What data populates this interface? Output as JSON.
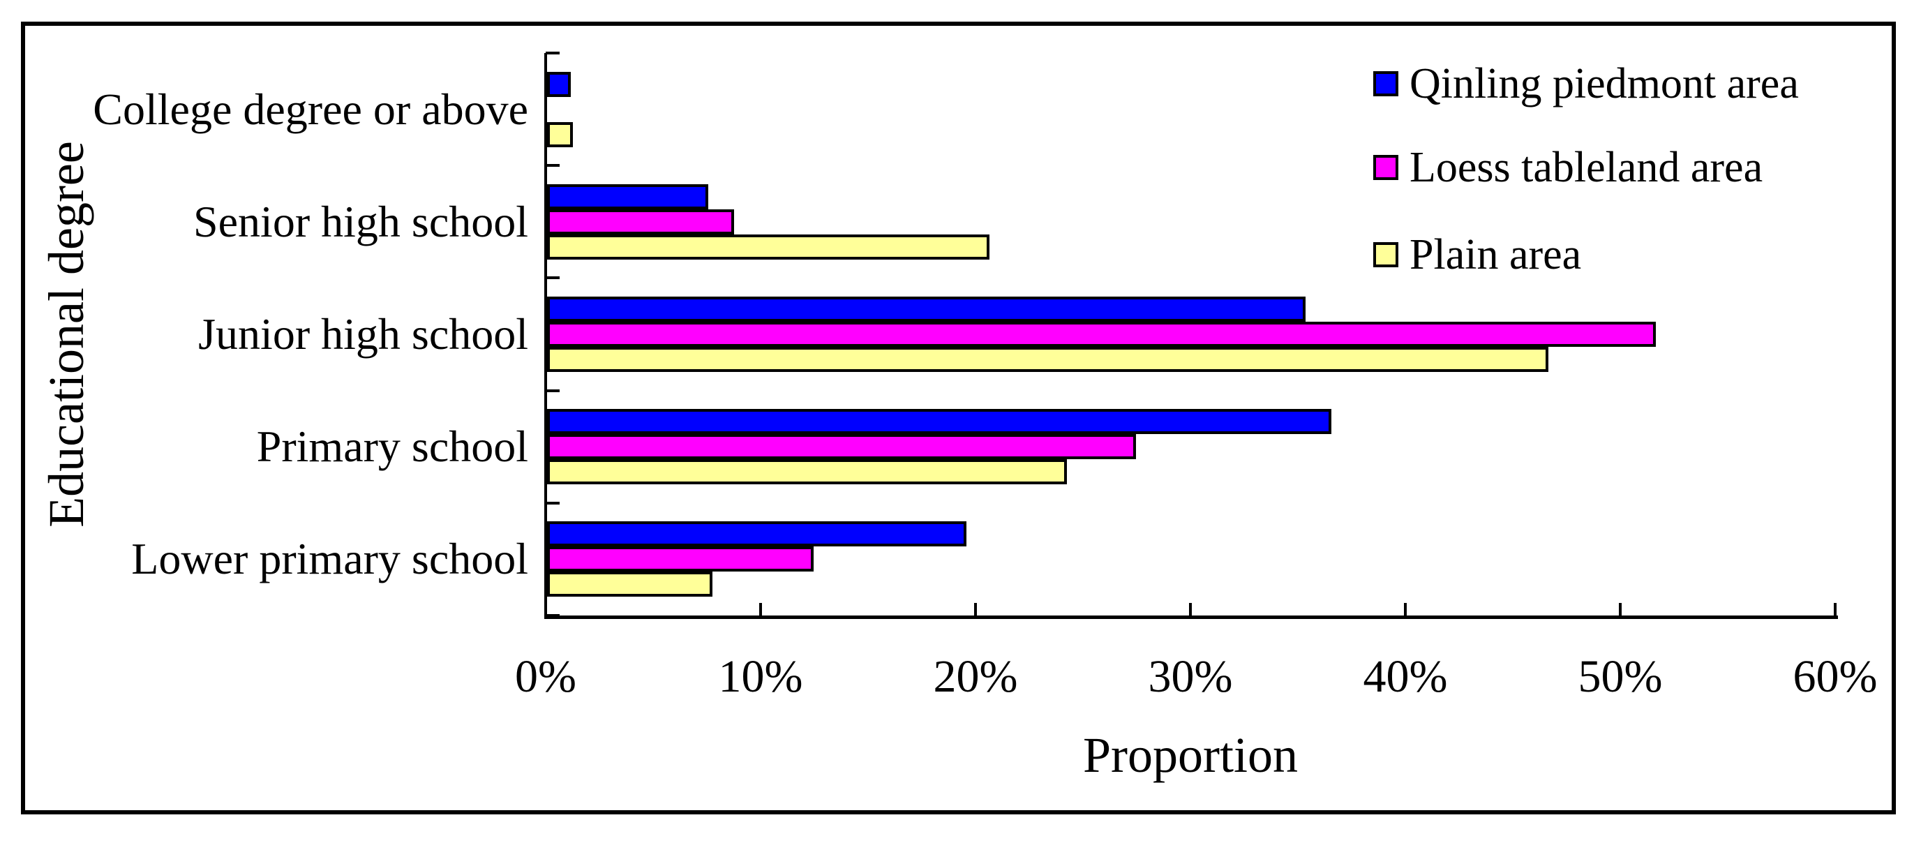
{
  "chart_data": {
    "type": "bar",
    "orientation": "horizontal",
    "xlabel": "Proportion",
    "ylabel": "Educational degree",
    "categories": [
      "College degree or above",
      "Senior high school",
      "Junior high school",
      "Primary school",
      "Lower primary school"
    ],
    "series": [
      {
        "name": "Qinling piedmont area",
        "color": "#0000ff",
        "values": [
          1.1,
          7.5,
          35.3,
          36.5,
          19.5
        ]
      },
      {
        "name": "Loess tableland area",
        "color": "#ff00ff",
        "values": [
          0,
          8.7,
          51.6,
          27.4,
          12.4
        ]
      },
      {
        "name": "Plain area",
        "color": "#ffff99",
        "values": [
          1.2,
          20.6,
          46.6,
          24.2,
          7.7
        ]
      }
    ],
    "x_ticks": [
      "0%",
      "10%",
      "20%",
      "30%",
      "40%",
      "50%",
      "60%"
    ],
    "xlim": [
      0,
      60
    ],
    "grid": false,
    "legend_position": "upper-right",
    "colors": {
      "axis": "#000000",
      "bar_border": "#000000",
      "background": "#ffffff",
      "frame_border": "#000000"
    }
  }
}
